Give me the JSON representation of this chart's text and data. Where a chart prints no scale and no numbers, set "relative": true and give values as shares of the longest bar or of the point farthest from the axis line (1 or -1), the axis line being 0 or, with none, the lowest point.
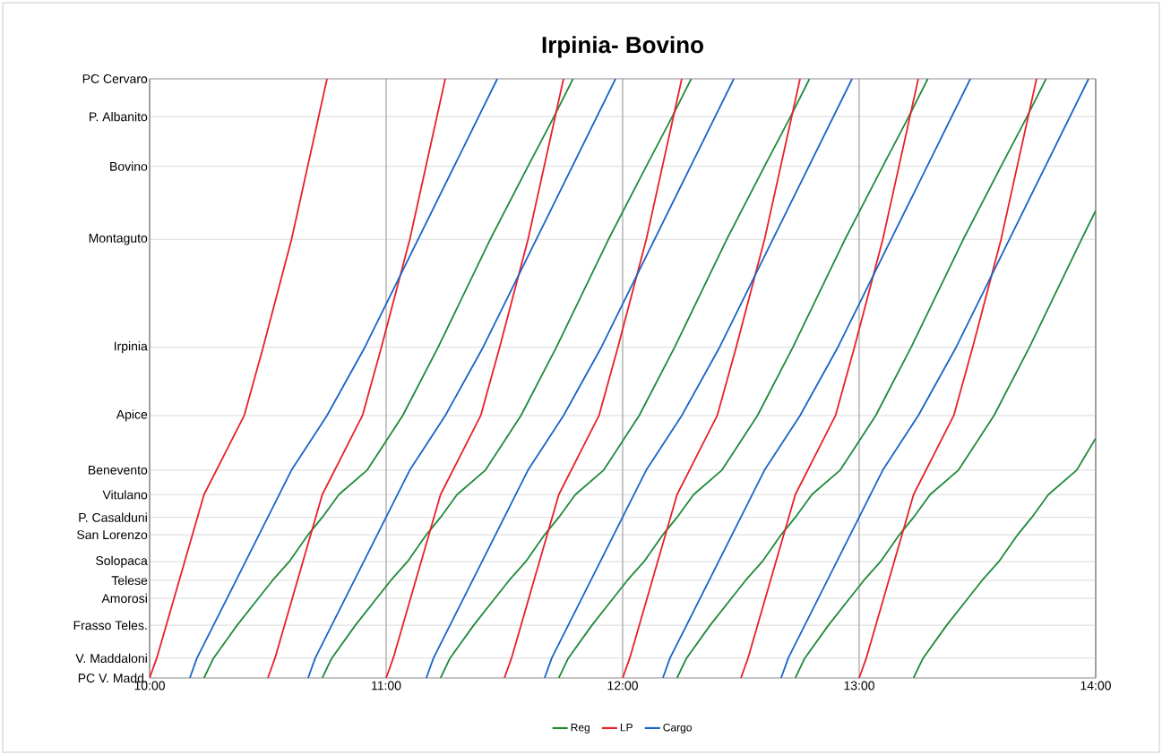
{
  "chart_data": {
    "type": "line",
    "title": "Irpinia- Bovino",
    "relative": true,
    "xlim": [
      10,
      14
    ],
    "xticks": [
      {
        "value": 10,
        "label": "10:00"
      },
      {
        "value": 11,
        "label": "11:00"
      },
      {
        "value": 12,
        "label": "12:00"
      },
      {
        "value": 13,
        "label": "13:00"
      },
      {
        "value": 14,
        "label": "14:00"
      }
    ],
    "ref_lines": [
      {
        "axis": "y",
        "value": 0,
        "label": "PC V. Madd.",
        "color": "#b4b4b4"
      },
      {
        "axis": "y",
        "value": 0.033,
        "label": "V. Maddaloni",
        "color": "#b4b4b4"
      },
      {
        "axis": "y",
        "value": 0.088,
        "label": "Frasso Teles.",
        "color": "#b4b4b4"
      },
      {
        "axis": "y",
        "value": 0.133,
        "label": "Amorosi",
        "color": "#b4b4b4"
      },
      {
        "axis": "y",
        "value": 0.163,
        "label": "Telese",
        "color": "#b4b4b4"
      },
      {
        "axis": "y",
        "value": 0.194,
        "label": "Solopaca",
        "color": "#b4b4b4"
      },
      {
        "axis": "y",
        "value": 0.239,
        "label": "San Lorenzo",
        "color": "#b4b4b4"
      },
      {
        "axis": "y",
        "value": 0.268,
        "label": "P. Casalduni",
        "color": "#b4b4b4"
      },
      {
        "axis": "y",
        "value": 0.306,
        "label": "Vitulano",
        "color": "#b4b4b4"
      },
      {
        "axis": "y",
        "value": 0.347,
        "label": "Benevento",
        "color": "#b4b4b4"
      },
      {
        "axis": "y",
        "value": 0.438,
        "label": "Apice",
        "color": "#b4b4b4"
      },
      {
        "axis": "y",
        "value": 0.552,
        "label": "Irpinia",
        "color": "#b4b4b4"
      },
      {
        "axis": "y",
        "value": 0.732,
        "label": "Montaguto",
        "color": "#b4b4b4"
      },
      {
        "axis": "y",
        "value": 0.854,
        "label": "Bovino",
        "color": "#b4b4b4"
      },
      {
        "axis": "y",
        "value": 0.937,
        "label": "P. Albanito",
        "color": "#b4b4b4"
      },
      {
        "axis": "y",
        "value": 1,
        "label": "PC Cervaro",
        "color": "#b4b4b4"
      }
    ],
    "grid": "x",
    "legend": "bottom",
    "marker": "none",
    "line_style": "solid",
    "series": [
      {
        "name": "Reg",
        "color": "#1f8a3a",
        "x": [
          10.23,
          10.27,
          10.37,
          10.46,
          10.52,
          10.59,
          10.67,
          10.73,
          10.8,
          10.92,
          11.07,
          11.22,
          11.44,
          11.6,
          11.71,
          11.79
        ],
        "values": [
          0,
          0.033,
          0.088,
          0.133,
          0.163,
          0.194,
          0.239,
          0.268,
          0.306,
          0.347,
          0.438,
          0.552,
          0.732,
          0.854,
          0.937,
          1
        ]
      },
      {
        "color": "#1f8a3a",
        "x": [
          10.73,
          10.77,
          10.87,
          10.96,
          11.02,
          11.09,
          11.17,
          11.23,
          11.3,
          11.42,
          11.57,
          11.72,
          11.94,
          12.1,
          12.21,
          12.29
        ],
        "values": [
          0,
          0.033,
          0.088,
          0.133,
          0.163,
          0.194,
          0.239,
          0.268,
          0.306,
          0.347,
          0.438,
          0.552,
          0.732,
          0.854,
          0.937,
          1
        ]
      },
      {
        "color": "#1f8a3a",
        "x": [
          11.23,
          11.27,
          11.37,
          11.46,
          11.52,
          11.59,
          11.67,
          11.73,
          11.8,
          11.92,
          12.07,
          12.22,
          12.44,
          12.6,
          12.71,
          12.79
        ],
        "values": [
          0,
          0.033,
          0.088,
          0.133,
          0.163,
          0.194,
          0.239,
          0.268,
          0.306,
          0.347,
          0.438,
          0.552,
          0.732,
          0.854,
          0.937,
          1
        ]
      },
      {
        "color": "#1f8a3a",
        "x": [
          11.73,
          11.77,
          11.87,
          11.96,
          12.02,
          12.09,
          12.17,
          12.23,
          12.3,
          12.42,
          12.57,
          12.72,
          12.94,
          13.1,
          13.21,
          13.29
        ],
        "values": [
          0,
          0.033,
          0.088,
          0.133,
          0.163,
          0.194,
          0.239,
          0.268,
          0.306,
          0.347,
          0.438,
          0.552,
          0.732,
          0.854,
          0.937,
          1
        ]
      },
      {
        "color": "#1f8a3a",
        "x": [
          12.23,
          12.27,
          12.37,
          12.46,
          12.52,
          12.59,
          12.67,
          12.73,
          12.8,
          12.92,
          13.07,
          13.22,
          13.44,
          13.6,
          13.71,
          13.79
        ],
        "values": [
          0,
          0.033,
          0.088,
          0.133,
          0.163,
          0.194,
          0.239,
          0.268,
          0.306,
          0.347,
          0.438,
          0.552,
          0.732,
          0.854,
          0.937,
          1
        ]
      },
      {
        "color": "#1f8a3a",
        "x": [
          12.73,
          12.77,
          12.87,
          12.96,
          13.02,
          13.09,
          13.17,
          13.23,
          13.3,
          13.42,
          13.57,
          13.72,
          13.94,
          14
        ],
        "values": [
          0,
          0.033,
          0.088,
          0.133,
          0.163,
          0.194,
          0.239,
          0.268,
          0.306,
          0.347,
          0.438,
          0.552,
          0.732,
          0.78
        ]
      },
      {
        "color": "#1f8a3a",
        "x": [
          13.23,
          13.27,
          13.37,
          13.46,
          13.52,
          13.59,
          13.67,
          13.73,
          13.8,
          13.92,
          14
        ],
        "values": [
          0,
          0.033,
          0.088,
          0.133,
          0.163,
          0.194,
          0.239,
          0.268,
          0.306,
          0.347,
          0.4
        ]
      },
      {
        "name": "LP",
        "color": "#e8202a",
        "x": [
          10,
          10.03,
          10.23,
          10.4,
          10.48,
          10.6,
          10.75
        ],
        "values": [
          0,
          0.033,
          0.306,
          0.438,
          0.552,
          0.732,
          1
        ]
      },
      {
        "color": "#e8202a",
        "x": [
          10.5,
          10.53,
          10.73,
          10.9,
          10.98,
          11.1,
          11.25
        ],
        "values": [
          0,
          0.033,
          0.306,
          0.438,
          0.552,
          0.732,
          1
        ]
      },
      {
        "color": "#e8202a",
        "x": [
          11,
          11.03,
          11.23,
          11.4,
          11.48,
          11.6,
          11.75
        ],
        "values": [
          0,
          0.033,
          0.306,
          0.438,
          0.552,
          0.732,
          1
        ]
      },
      {
        "color": "#e8202a",
        "x": [
          11.5,
          11.53,
          11.73,
          11.9,
          11.98,
          12.1,
          12.25
        ],
        "values": [
          0,
          0.033,
          0.306,
          0.438,
          0.552,
          0.732,
          1
        ]
      },
      {
        "color": "#e8202a",
        "x": [
          12,
          12.03,
          12.23,
          12.4,
          12.48,
          12.6,
          12.75
        ],
        "values": [
          0,
          0.033,
          0.306,
          0.438,
          0.552,
          0.732,
          1
        ]
      },
      {
        "color": "#e8202a",
        "x": [
          12.5,
          12.53,
          12.73,
          12.9,
          12.98,
          13.1,
          13.25
        ],
        "values": [
          0,
          0.033,
          0.306,
          0.438,
          0.552,
          0.732,
          1
        ]
      },
      {
        "color": "#e8202a",
        "x": [
          13,
          13.03,
          13.23,
          13.4,
          13.48,
          13.6,
          13.75
        ],
        "values": [
          0,
          0.033,
          0.306,
          0.438,
          0.552,
          0.732,
          1
        ]
      },
      {
        "name": "Cargo",
        "color": "#1a64c8",
        "x": [
          10.17,
          10.2,
          10.6,
          10.75,
          10.91,
          11.47
        ],
        "values": [
          0,
          0.033,
          0.347,
          0.438,
          0.552,
          1
        ]
      },
      {
        "color": "#1a64c8",
        "x": [
          10.67,
          10.7,
          11.1,
          11.25,
          11.41,
          11.97
        ],
        "values": [
          0,
          0.033,
          0.347,
          0.438,
          0.552,
          1
        ]
      },
      {
        "color": "#1a64c8",
        "x": [
          11.17,
          11.2,
          11.6,
          11.75,
          11.91,
          12.47
        ],
        "values": [
          0,
          0.033,
          0.347,
          0.438,
          0.552,
          1
        ]
      },
      {
        "color": "#1a64c8",
        "x": [
          11.67,
          11.7,
          12.1,
          12.25,
          12.41,
          12.97
        ],
        "values": [
          0,
          0.033,
          0.347,
          0.438,
          0.552,
          1
        ]
      },
      {
        "color": "#1a64c8",
        "x": [
          12.17,
          12.2,
          12.6,
          12.75,
          12.91,
          13.47
        ],
        "values": [
          0,
          0.033,
          0.347,
          0.438,
          0.552,
          1
        ]
      },
      {
        "color": "#1a64c8",
        "x": [
          12.67,
          12.7,
          13.1,
          13.25,
          13.41,
          13.97
        ],
        "values": [
          0,
          0.033,
          0.347,
          0.438,
          0.552,
          1
        ]
      }
    ]
  }
}
